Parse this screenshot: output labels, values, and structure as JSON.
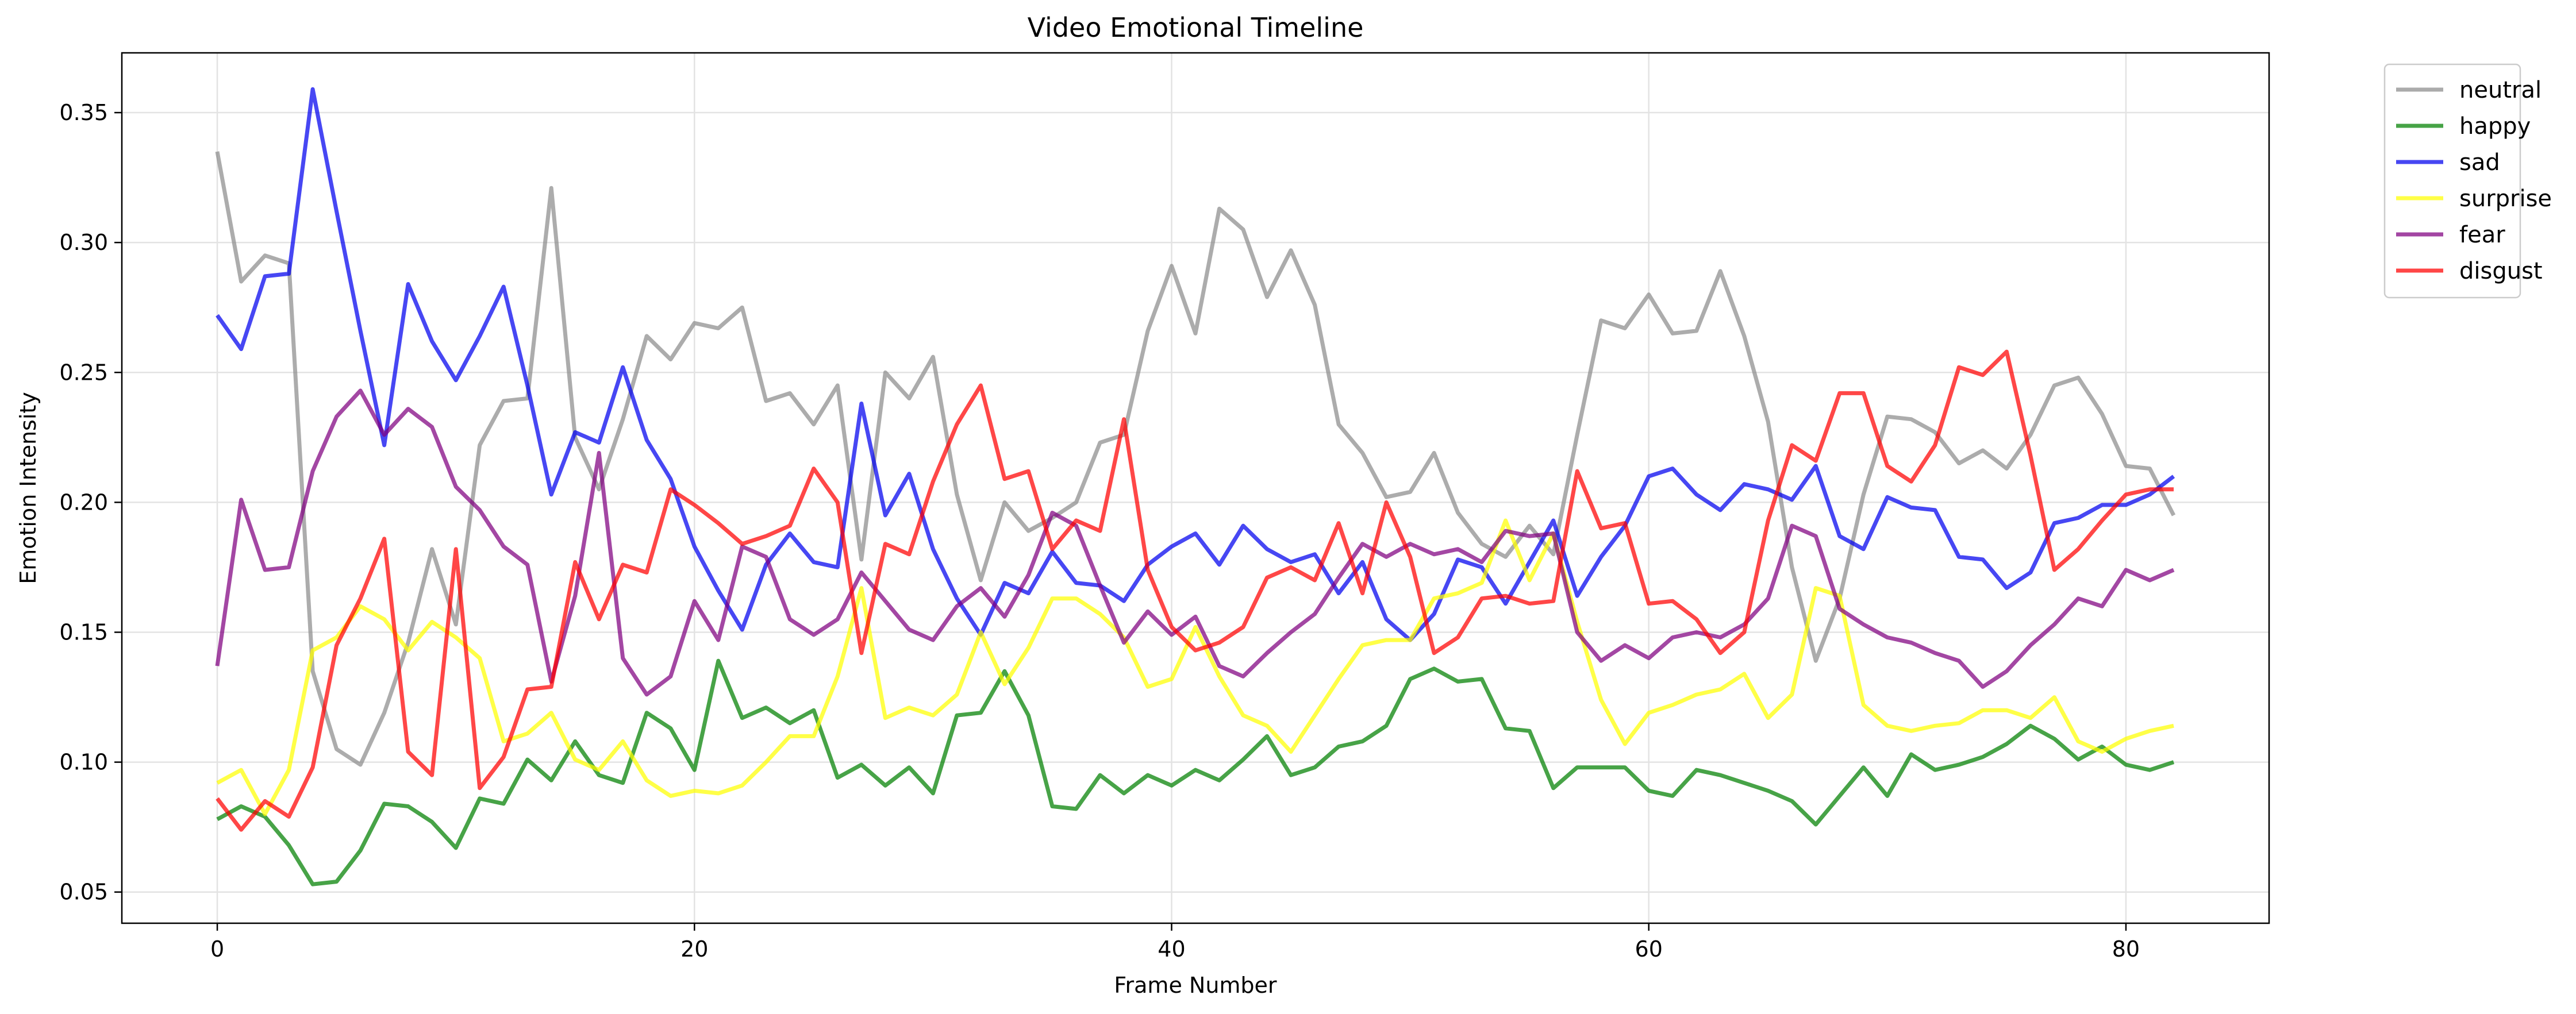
{
  "chart_data": {
    "type": "line",
    "title": "Video Emotional Timeline",
    "xlabel": "Frame Number",
    "ylabel": "Emotion Intensity",
    "xlim": [
      -4,
      86
    ],
    "ylim": [
      0.038,
      0.373
    ],
    "xticks": [
      0,
      20,
      40,
      60,
      80
    ],
    "yticks": [
      0.05,
      0.1,
      0.15,
      0.2,
      0.25,
      0.3,
      0.35
    ],
    "grid": true,
    "legend_position": "outside-top-right",
    "x": [
      0,
      1,
      2,
      3,
      4,
      5,
      6,
      7,
      8,
      9,
      10,
      11,
      12,
      13,
      14,
      15,
      16,
      17,
      18,
      19,
      20,
      21,
      22,
      23,
      24,
      25,
      26,
      27,
      28,
      29,
      30,
      31,
      32,
      33,
      34,
      35,
      36,
      37,
      38,
      39,
      40,
      41,
      42,
      43,
      44,
      45,
      46,
      47,
      48,
      49,
      50,
      51,
      52,
      53,
      54,
      55,
      56,
      57,
      58,
      59,
      60,
      61,
      62,
      63,
      64,
      65,
      66,
      67,
      68,
      69,
      70,
      71,
      72,
      73,
      74,
      75,
      76,
      77,
      78,
      79,
      80,
      81,
      82
    ],
    "series": [
      {
        "name": "neutral",
        "color": "#8c8c8c",
        "values": [
          0.335,
          0.285,
          0.295,
          0.292,
          0.135,
          0.105,
          0.099,
          0.119,
          0.146,
          0.182,
          0.153,
          0.222,
          0.239,
          0.24,
          0.321,
          0.225,
          0.205,
          0.232,
          0.264,
          0.255,
          0.269,
          0.267,
          0.275,
          0.239,
          0.242,
          0.23,
          0.245,
          0.178,
          0.25,
          0.24,
          0.256,
          0.203,
          0.17,
          0.2,
          0.189,
          0.194,
          0.2,
          0.223,
          0.226,
          0.266,
          0.291,
          0.265,
          0.313,
          0.305,
          0.279,
          0.297,
          0.276,
          0.23,
          0.219,
          0.202,
          0.204,
          0.219,
          0.196,
          0.184,
          0.179,
          0.191,
          0.18,
          0.226,
          0.27,
          0.267,
          0.28,
          0.265,
          0.266,
          0.289,
          0.264,
          0.231,
          0.175,
          0.139,
          0.163,
          0.203,
          0.233,
          0.232,
          0.227,
          0.215,
          0.22,
          0.213,
          0.226,
          0.245,
          0.248,
          0.234,
          0.214,
          0.213,
          0.195
        ]
      },
      {
        "name": "happy",
        "color": "#008000",
        "values": [
          0.078,
          0.083,
          0.079,
          0.068,
          0.053,
          0.054,
          0.066,
          0.084,
          0.083,
          0.077,
          0.067,
          0.086,
          0.084,
          0.101,
          0.093,
          0.108,
          0.095,
          0.092,
          0.119,
          0.113,
          0.097,
          0.139,
          0.117,
          0.121,
          0.115,
          0.12,
          0.094,
          0.099,
          0.091,
          0.098,
          0.088,
          0.118,
          0.119,
          0.135,
          0.118,
          0.083,
          0.082,
          0.095,
          0.088,
          0.095,
          0.091,
          0.097,
          0.093,
          0.101,
          0.11,
          0.095,
          0.098,
          0.106,
          0.108,
          0.114,
          0.132,
          0.136,
          0.131,
          0.132,
          0.113,
          0.112,
          0.09,
          0.098,
          0.098,
          0.098,
          0.089,
          0.087,
          0.097,
          0.095,
          0.092,
          0.089,
          0.085,
          0.076,
          0.087,
          0.098,
          0.087,
          0.103,
          0.097,
          0.099,
          0.102,
          0.107,
          0.114,
          0.109,
          0.101,
          0.106,
          0.099,
          0.097,
          0.1
        ]
      },
      {
        "name": "sad",
        "color": "#0000ee",
        "values": [
          0.272,
          0.259,
          0.287,
          0.288,
          0.359,
          0.312,
          0.266,
          0.222,
          0.284,
          0.262,
          0.247,
          0.264,
          0.283,
          0.245,
          0.203,
          0.227,
          0.223,
          0.252,
          0.224,
          0.209,
          0.183,
          0.166,
          0.151,
          0.176,
          0.188,
          0.177,
          0.175,
          0.238,
          0.195,
          0.211,
          0.182,
          0.163,
          0.149,
          0.169,
          0.165,
          0.181,
          0.169,
          0.168,
          0.162,
          0.176,
          0.183,
          0.188,
          0.176,
          0.191,
          0.182,
          0.177,
          0.18,
          0.165,
          0.177,
          0.155,
          0.147,
          0.157,
          0.178,
          0.175,
          0.161,
          0.177,
          0.193,
          0.164,
          0.179,
          0.191,
          0.21,
          0.213,
          0.203,
          0.197,
          0.207,
          0.205,
          0.201,
          0.214,
          0.187,
          0.182,
          0.202,
          0.198,
          0.197,
          0.179,
          0.178,
          0.167,
          0.173,
          0.192,
          0.194,
          0.199,
          0.199,
          0.203,
          0.21
        ]
      },
      {
        "name": "surprise",
        "color": "#ffff00",
        "values": [
          0.092,
          0.097,
          0.08,
          0.097,
          0.143,
          0.148,
          0.16,
          0.155,
          0.143,
          0.154,
          0.148,
          0.14,
          0.108,
          0.111,
          0.119,
          0.101,
          0.097,
          0.108,
          0.093,
          0.087,
          0.089,
          0.088,
          0.091,
          0.1,
          0.11,
          0.11,
          0.133,
          0.167,
          0.117,
          0.121,
          0.118,
          0.126,
          0.15,
          0.13,
          0.144,
          0.163,
          0.163,
          0.157,
          0.148,
          0.129,
          0.132,
          0.152,
          0.133,
          0.118,
          0.114,
          0.104,
          0.118,
          0.132,
          0.145,
          0.147,
          0.147,
          0.163,
          0.165,
          0.169,
          0.193,
          0.17,
          0.188,
          0.154,
          0.124,
          0.107,
          0.119,
          0.122,
          0.126,
          0.128,
          0.134,
          0.117,
          0.126,
          0.167,
          0.164,
          0.122,
          0.114,
          0.112,
          0.114,
          0.115,
          0.12,
          0.12,
          0.117,
          0.125,
          0.108,
          0.104,
          0.109,
          0.112,
          0.114
        ]
      },
      {
        "name": "fear",
        "color": "#800080",
        "values": [
          0.137,
          0.201,
          0.174,
          0.175,
          0.212,
          0.233,
          0.243,
          0.226,
          0.236,
          0.229,
          0.206,
          0.197,
          0.183,
          0.176,
          0.131,
          0.164,
          0.219,
          0.14,
          0.126,
          0.133,
          0.162,
          0.147,
          0.183,
          0.179,
          0.155,
          0.149,
          0.155,
          0.173,
          0.162,
          0.151,
          0.147,
          0.16,
          0.167,
          0.156,
          0.172,
          0.196,
          0.191,
          0.168,
          0.146,
          0.158,
          0.149,
          0.156,
          0.137,
          0.133,
          0.142,
          0.15,
          0.157,
          0.171,
          0.184,
          0.179,
          0.184,
          0.18,
          0.182,
          0.177,
          0.189,
          0.187,
          0.188,
          0.15,
          0.139,
          0.145,
          0.14,
          0.148,
          0.15,
          0.148,
          0.153,
          0.163,
          0.191,
          0.187,
          0.159,
          0.153,
          0.148,
          0.146,
          0.142,
          0.139,
          0.129,
          0.135,
          0.145,
          0.153,
          0.163,
          0.16,
          0.174,
          0.17,
          0.174
        ]
      },
      {
        "name": "disgust",
        "color": "#ff0000",
        "values": [
          0.086,
          0.074,
          0.085,
          0.079,
          0.098,
          0.145,
          0.163,
          0.186,
          0.104,
          0.095,
          0.182,
          0.09,
          0.102,
          0.128,
          0.129,
          0.177,
          0.155,
          0.176,
          0.173,
          0.205,
          0.199,
          0.192,
          0.184,
          0.187,
          0.191,
          0.213,
          0.2,
          0.142,
          0.184,
          0.18,
          0.208,
          0.23,
          0.245,
          0.209,
          0.212,
          0.182,
          0.193,
          0.189,
          0.232,
          0.174,
          0.152,
          0.143,
          0.146,
          0.152,
          0.171,
          0.175,
          0.17,
          0.192,
          0.165,
          0.2,
          0.179,
          0.142,
          0.148,
          0.163,
          0.164,
          0.161,
          0.162,
          0.212,
          0.19,
          0.192,
          0.161,
          0.162,
          0.155,
          0.142,
          0.15,
          0.193,
          0.222,
          0.216,
          0.242,
          0.242,
          0.214,
          0.208,
          0.222,
          0.252,
          0.249,
          0.258,
          0.218,
          0.174,
          0.182,
          0.193,
          0.203,
          0.205,
          0.205
        ]
      }
    ]
  }
}
